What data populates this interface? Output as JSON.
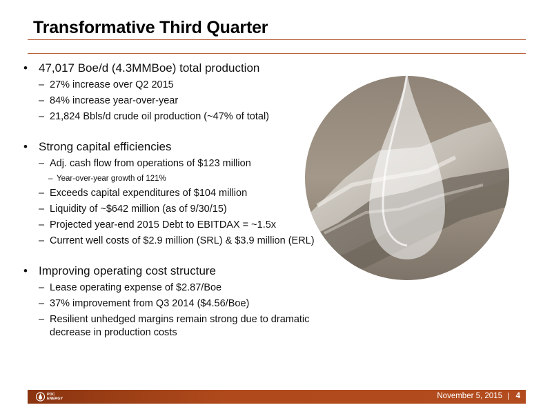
{
  "title": "Transformative Third Quarter",
  "sections": [
    {
      "bullet": "47,017 Boe/d (4.3MMBoe) total production",
      "subs": [
        "27% increase over Q2 2015",
        "84% increase year-over-year",
        "21,824 Bbls/d crude oil production (~47% of total)"
      ]
    },
    {
      "bullet": "Strong capital efficiencies",
      "subs": [
        "Adj. cash flow from operations of $123 million",
        "Year-over-year growth of 121%",
        "Exceeds capital expenditures of $104 million",
        "Liquidity of ~$642 million (as of 9/30/15)",
        "Projected year-end 2015 Debt to EBITDAX = ~1.5x",
        "Current well costs of $2.9 million (SRL) & $3.9 million (ERL)"
      ]
    },
    {
      "bullet": "Improving operating cost structure",
      "subs": [
        "Lease operating expense of $2.87/Boe",
        "37% improvement from Q3 2014 ($4.56/Boe)",
        "Resilient unhedged margins remain strong due to dramatic",
        "decrease in production costs"
      ]
    }
  ],
  "footer": {
    "logo_line1": "PDC",
    "logo_line2": "ENERGY",
    "date": "November 5, 2015",
    "separator": "|",
    "page": "4"
  },
  "colors": {
    "accent": "#b04a1c",
    "rule": "#b8603a"
  },
  "icons": {
    "logo": "pdc-flame-logo-icon",
    "art": "oil-drop-landscape-icon"
  }
}
